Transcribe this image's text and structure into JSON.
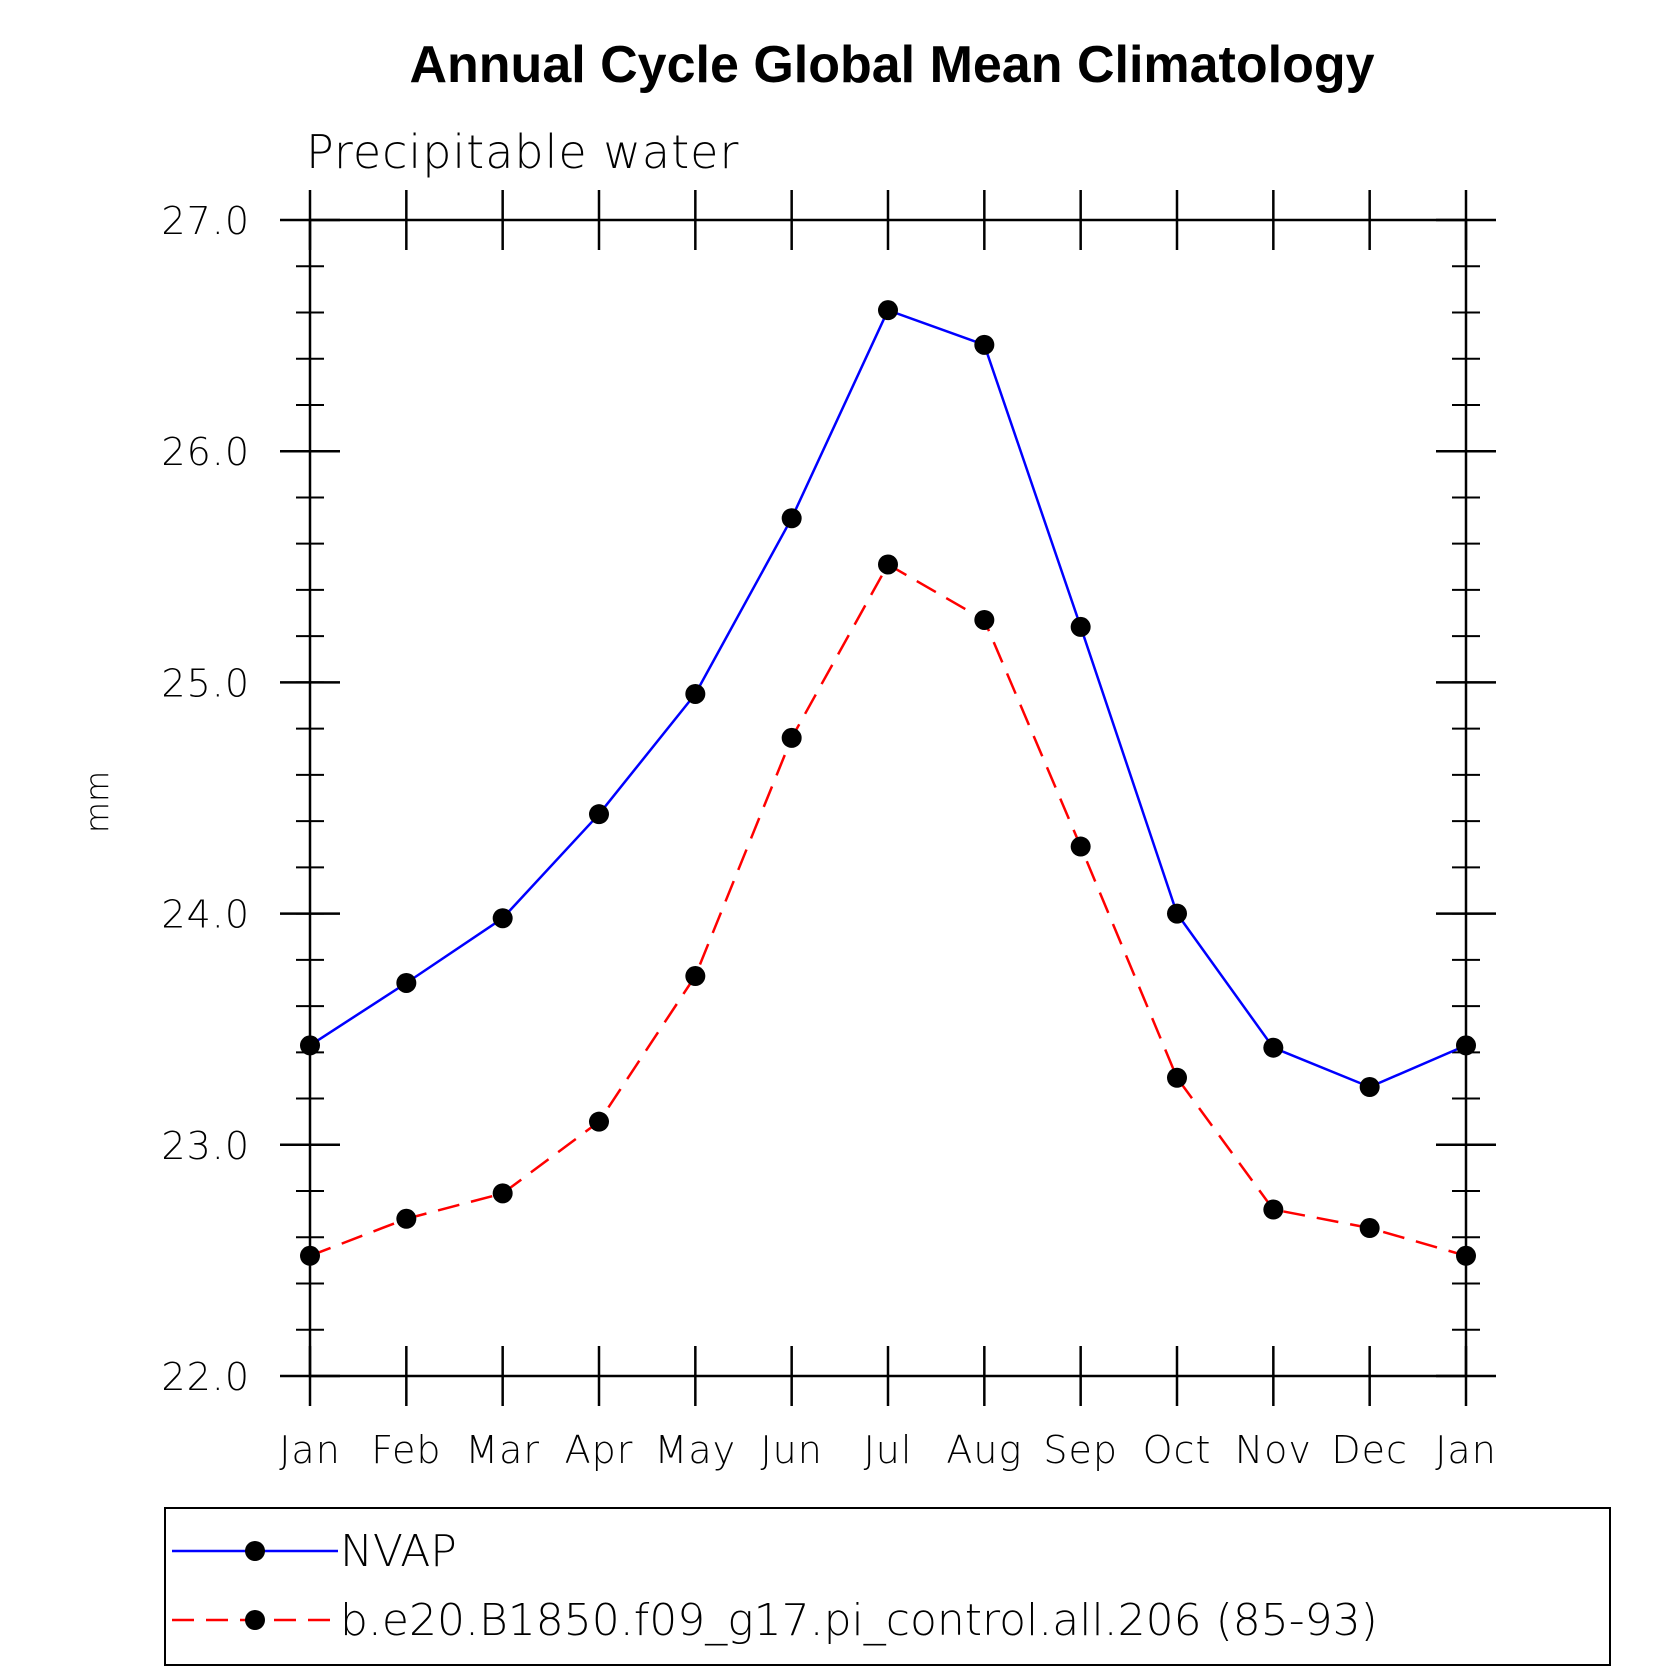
{
  "chart_data": {
    "type": "line",
    "title": "Annual Cycle Global Mean Climatology",
    "subtitle": "Precipitable water",
    "xlabel": "",
    "ylabel": "mm",
    "categories": [
      "Jan",
      "Feb",
      "Mar",
      "Apr",
      "May",
      "Jun",
      "Jul",
      "Aug",
      "Sep",
      "Oct",
      "Nov",
      "Dec",
      "Jan"
    ],
    "ylim": [
      22.0,
      27.0
    ],
    "yticks": [
      "22.0",
      "23.0",
      "24.0",
      "25.0",
      "26.0",
      "27.0"
    ],
    "ytick_values": [
      22.0,
      23.0,
      24.0,
      25.0,
      26.0,
      27.0
    ],
    "y_minor_step": 0.2,
    "grid": false,
    "legend_position": "bottom",
    "series": [
      {
        "name": "NVAP",
        "color": "#0000ff",
        "line_style": "solid",
        "marker": "filled-circle",
        "values": [
          23.43,
          23.7,
          23.98,
          24.43,
          24.95,
          25.71,
          26.61,
          26.46,
          25.24,
          24.0,
          23.42,
          23.25,
          23.43
        ]
      },
      {
        "name": "b.e20.B1850.f09_g17.pi_control.all.206 (85-93)",
        "color": "#ff0000",
        "line_style": "dashed",
        "marker": "filled-circle",
        "values": [
          22.52,
          22.68,
          22.79,
          23.1,
          23.73,
          24.76,
          25.51,
          25.27,
          24.29,
          23.29,
          22.72,
          22.64,
          22.52
        ]
      }
    ]
  }
}
